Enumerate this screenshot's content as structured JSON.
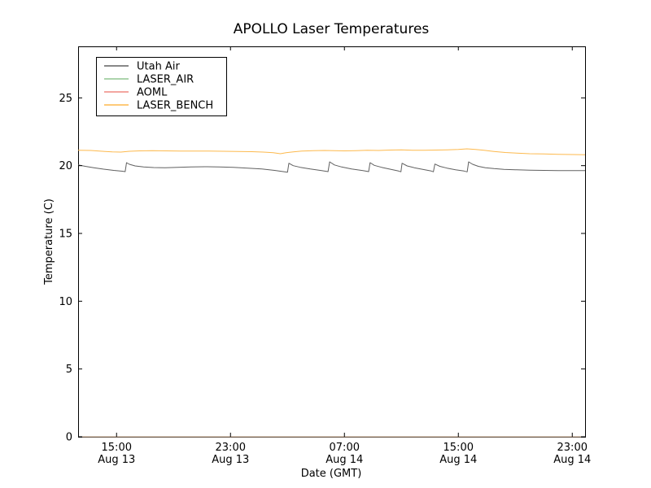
{
  "chart_data": {
    "type": "line",
    "title": "APOLLO Laser Temperatures",
    "xlabel": "Date (GMT)",
    "ylabel": "Temperature (C)",
    "grid": false,
    "legend_position": "upper left",
    "xlim_hours_since_aug13_0000_gmt": [
      12.3,
      47.9
    ],
    "ylim": [
      0,
      28.8
    ],
    "x_ticks": [
      {
        "t": 15,
        "line1": "15:00",
        "line2": "Aug 13"
      },
      {
        "t": 23,
        "line1": "23:00",
        "line2": "Aug 13"
      },
      {
        "t": 31,
        "line1": "07:00",
        "line2": "Aug 14"
      },
      {
        "t": 39,
        "line1": "15:00",
        "line2": "Aug 14"
      },
      {
        "t": 47,
        "line1": "23:00",
        "line2": "Aug 14"
      }
    ],
    "y_ticks": [
      0,
      5,
      10,
      15,
      20,
      25
    ],
    "series": [
      {
        "name": "Utah Air",
        "color": "#606060",
        "opacity": 1,
        "points": [
          [
            12.3,
            20.05
          ],
          [
            12.8,
            19.95
          ],
          [
            13.4,
            19.85
          ],
          [
            14.1,
            19.74
          ],
          [
            14.8,
            19.65
          ],
          [
            15.4,
            19.59
          ],
          [
            15.6,
            19.56
          ],
          [
            15.7,
            20.22
          ],
          [
            15.9,
            20.1
          ],
          [
            16.3,
            19.98
          ],
          [
            16.9,
            19.9
          ],
          [
            17.6,
            19.86
          ],
          [
            18.4,
            19.85
          ],
          [
            19.3,
            19.87
          ],
          [
            20.2,
            19.9
          ],
          [
            21.2,
            19.92
          ],
          [
            22.2,
            19.9
          ],
          [
            23.2,
            19.87
          ],
          [
            24.2,
            19.82
          ],
          [
            25.2,
            19.75
          ],
          [
            26.1,
            19.65
          ],
          [
            26.8,
            19.55
          ],
          [
            27.0,
            19.52
          ],
          [
            27.1,
            20.18
          ],
          [
            27.4,
            20.0
          ],
          [
            27.9,
            19.88
          ],
          [
            28.6,
            19.75
          ],
          [
            29.4,
            19.63
          ],
          [
            29.85,
            19.56
          ],
          [
            29.96,
            20.28
          ],
          [
            30.3,
            20.05
          ],
          [
            30.8,
            19.9
          ],
          [
            31.5,
            19.76
          ],
          [
            32.3,
            19.63
          ],
          [
            32.7,
            19.56
          ],
          [
            32.8,
            20.22
          ],
          [
            33.1,
            20.02
          ],
          [
            33.6,
            19.88
          ],
          [
            34.2,
            19.74
          ],
          [
            34.8,
            19.6
          ],
          [
            34.97,
            19.55
          ],
          [
            35.05,
            20.18
          ],
          [
            35.4,
            19.98
          ],
          [
            35.9,
            19.85
          ],
          [
            36.5,
            19.72
          ],
          [
            37.1,
            19.6
          ],
          [
            37.25,
            19.55
          ],
          [
            37.35,
            20.12
          ],
          [
            37.7,
            19.95
          ],
          [
            38.2,
            19.82
          ],
          [
            38.8,
            19.7
          ],
          [
            39.4,
            19.6
          ],
          [
            39.62,
            19.54
          ],
          [
            39.72,
            20.28
          ],
          [
            40.0,
            20.1
          ],
          [
            40.4,
            19.95
          ],
          [
            40.9,
            19.85
          ],
          [
            41.5,
            19.78
          ],
          [
            42.2,
            19.73
          ],
          [
            43.0,
            19.7
          ],
          [
            44.0,
            19.67
          ],
          [
            45.0,
            19.65
          ],
          [
            46.0,
            19.64
          ],
          [
            47.0,
            19.63
          ],
          [
            47.9,
            19.64
          ]
        ]
      },
      {
        "name": "LASER_AIR",
        "color": "#90c690",
        "opacity": 1,
        "note": "flat at 0, hidden along bottom axis",
        "points": [
          [
            12.3,
            0
          ],
          [
            47.9,
            0
          ]
        ]
      },
      {
        "name": "AOML",
        "color": "#ef8880",
        "opacity": 0.55,
        "note": "flat at 0, overlaps bottom axis (brown tint)",
        "points": [
          [
            12.3,
            0
          ],
          [
            47.9,
            0
          ]
        ]
      },
      {
        "name": "LASER_BENCH",
        "color": "#fdb94d",
        "opacity": 1,
        "points": [
          [
            12.3,
            21.14
          ],
          [
            13.2,
            21.12
          ],
          [
            14.0,
            21.06
          ],
          [
            14.7,
            21.01
          ],
          [
            15.3,
            21.0
          ],
          [
            15.9,
            21.06
          ],
          [
            16.6,
            21.09
          ],
          [
            17.5,
            21.1
          ],
          [
            18.5,
            21.09
          ],
          [
            19.5,
            21.08
          ],
          [
            20.5,
            21.08
          ],
          [
            21.5,
            21.07
          ],
          [
            22.5,
            21.06
          ],
          [
            23.5,
            21.05
          ],
          [
            24.5,
            21.03
          ],
          [
            25.3,
            21.0
          ],
          [
            26.0,
            20.95
          ],
          [
            26.5,
            20.88
          ],
          [
            26.9,
            20.95
          ],
          [
            27.4,
            21.02
          ],
          [
            28.0,
            21.07
          ],
          [
            28.8,
            21.1
          ],
          [
            29.6,
            21.12
          ],
          [
            30.3,
            21.11
          ],
          [
            31.0,
            21.09
          ],
          [
            31.8,
            21.11
          ],
          [
            32.6,
            21.13
          ],
          [
            33.4,
            21.12
          ],
          [
            34.2,
            21.15
          ],
          [
            35.0,
            21.16
          ],
          [
            35.8,
            21.14
          ],
          [
            36.6,
            21.13
          ],
          [
            37.4,
            21.15
          ],
          [
            38.2,
            21.17
          ],
          [
            39.0,
            21.2
          ],
          [
            39.6,
            21.24
          ],
          [
            40.2,
            21.2
          ],
          [
            40.8,
            21.13
          ],
          [
            41.5,
            21.05
          ],
          [
            42.3,
            20.97
          ],
          [
            43.1,
            20.92
          ],
          [
            44.0,
            20.88
          ],
          [
            45.0,
            20.86
          ],
          [
            46.0,
            20.84
          ],
          [
            47.0,
            20.82
          ],
          [
            47.9,
            20.8
          ]
        ]
      }
    ],
    "colors": {
      "frame": "#000000",
      "background": "#ffffff",
      "text": "#000000"
    }
  }
}
